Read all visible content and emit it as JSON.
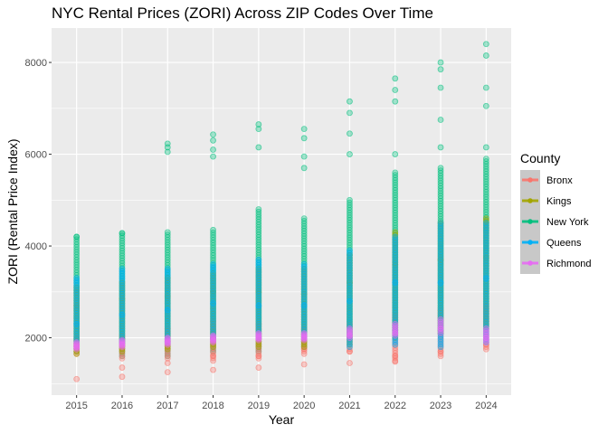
{
  "chart_data": {
    "type": "scatter",
    "title": "NYC Rental Prices (ZORI) Across ZIP Codes Over Time",
    "xlabel": "Year",
    "ylabel": "ZORI (Rental Price Index)",
    "x_ticks": [
      "2015",
      "2016",
      "2017",
      "2018",
      "2019",
      "2020",
      "2021",
      "2022",
      "2023",
      "2024"
    ],
    "y_ticks": [
      2000,
      4000,
      6000,
      8000
    ],
    "y_tick_labels": [
      "2000",
      "4000",
      "6000",
      "8000"
    ],
    "xlim": [
      2014.45,
      2024.55
    ],
    "ylim": [
      750,
      8750
    ],
    "grid": true,
    "legend": {
      "title": "County",
      "placement": "right"
    },
    "series": [
      {
        "name": "Bronx",
        "color": "#F8766D",
        "x": [
          2015,
          2016,
          2016,
          2017,
          2017,
          2018,
          2018,
          2019,
          2019,
          2020,
          2020,
          2021,
          2021,
          2022,
          2022,
          2023,
          2023,
          2024,
          2024
        ],
        "y": [
          1100,
          1150,
          1350,
          1250,
          1450,
          1300,
          1600,
          1350,
          1600,
          1420,
          1750,
          1450,
          1700,
          1480,
          1600,
          1600,
          1700,
          1750,
          1850
        ],
        "ranges": [
          [
            1650,
            2000
          ],
          [
            1550,
            2050
          ],
          [
            1550,
            2200
          ],
          [
            1500,
            2350
          ],
          [
            1550,
            2300
          ],
          [
            1650,
            2200
          ],
          [
            1700,
            2300
          ],
          [
            1500,
            2500
          ],
          [
            1650,
            2600
          ],
          [
            1800,
            2700
          ]
        ]
      },
      {
        "name": "Kings",
        "color": "#A3A500",
        "x": [
          2015,
          2016,
          2017,
          2018,
          2019,
          2020,
          2021,
          2022,
          2023,
          2024
        ],
        "y": [
          2700,
          2850,
          2900,
          3000,
          3000,
          2950,
          3200,
          3600,
          3700,
          3750
        ],
        "ranges": [
          [
            1650,
            3100
          ],
          [
            1700,
            3200
          ],
          [
            1750,
            3300
          ],
          [
            1800,
            3400
          ],
          [
            1800,
            3500
          ],
          [
            1800,
            3500
          ],
          [
            1850,
            3800
          ],
          [
            2000,
            4300
          ],
          [
            2100,
            4500
          ],
          [
            2200,
            4600
          ]
        ]
      },
      {
        "name": "New York",
        "color": "#00BF7D",
        "x": [
          2015,
          2016,
          2017,
          2017,
          2017,
          2018,
          2018,
          2018,
          2018,
          2019,
          2019,
          2019,
          2020,
          2020,
          2020,
          2020,
          2021,
          2021,
          2021,
          2021,
          2022,
          2022,
          2022,
          2022,
          2023,
          2023,
          2023,
          2023,
          2023,
          2024,
          2024,
          2024,
          2024,
          2024
        ],
        "y": [
          4200,
          4280,
          6050,
          6150,
          6230,
          5950,
          6100,
          6300,
          6430,
          6150,
          6550,
          6650,
          5700,
          5950,
          6350,
          6550,
          6000,
          6450,
          6900,
          7150,
          6000,
          7150,
          7400,
          7650,
          6150,
          6750,
          7450,
          7850,
          8000,
          6150,
          7050,
          7450,
          8150,
          8400
        ],
        "ranges": [
          [
            1700,
            4200
          ],
          [
            1600,
            4280
          ],
          [
            1600,
            4300
          ],
          [
            1700,
            4350
          ],
          [
            1700,
            4800
          ],
          [
            1800,
            4600
          ],
          [
            2000,
            5000
          ],
          [
            2100,
            5600
          ],
          [
            2100,
            5700
          ],
          [
            2300,
            5900
          ]
        ]
      },
      {
        "name": "Queens",
        "color": "#00B0F6",
        "x": [
          2015,
          2016,
          2017,
          2018,
          2019,
          2020,
          2021,
          2022,
          2023,
          2024
        ],
        "y": [
          2300,
          2500,
          2600,
          2750,
          2700,
          2700,
          2800,
          3200,
          3200,
          3300
        ],
        "ranges": [
          [
            1900,
            3300
          ],
          [
            1900,
            3500
          ],
          [
            1900,
            3500
          ],
          [
            2000,
            3600
          ],
          [
            2000,
            3700
          ],
          [
            2000,
            3600
          ],
          [
            1800,
            3900
          ],
          [
            1850,
            4200
          ],
          [
            1800,
            4500
          ],
          [
            1900,
            4500
          ]
        ]
      },
      {
        "name": "Richmond",
        "color": "#E76BF3",
        "x": [
          2015,
          2016,
          2017,
          2018,
          2019,
          2020,
          2021,
          2022,
          2023,
          2024
        ],
        "y": [
          1800,
          1850,
          1900,
          1950,
          2000,
          2000,
          2050,
          2100,
          2200,
          2000
        ],
        "ranges": [
          [
            1750,
            1900
          ],
          [
            1800,
            1950
          ],
          [
            1850,
            2000
          ],
          [
            1900,
            2050
          ],
          [
            1950,
            2100
          ],
          [
            1950,
            2100
          ],
          [
            2000,
            2200
          ],
          [
            2050,
            2300
          ],
          [
            2100,
            2400
          ],
          [
            1900,
            2200
          ]
        ]
      }
    ]
  }
}
